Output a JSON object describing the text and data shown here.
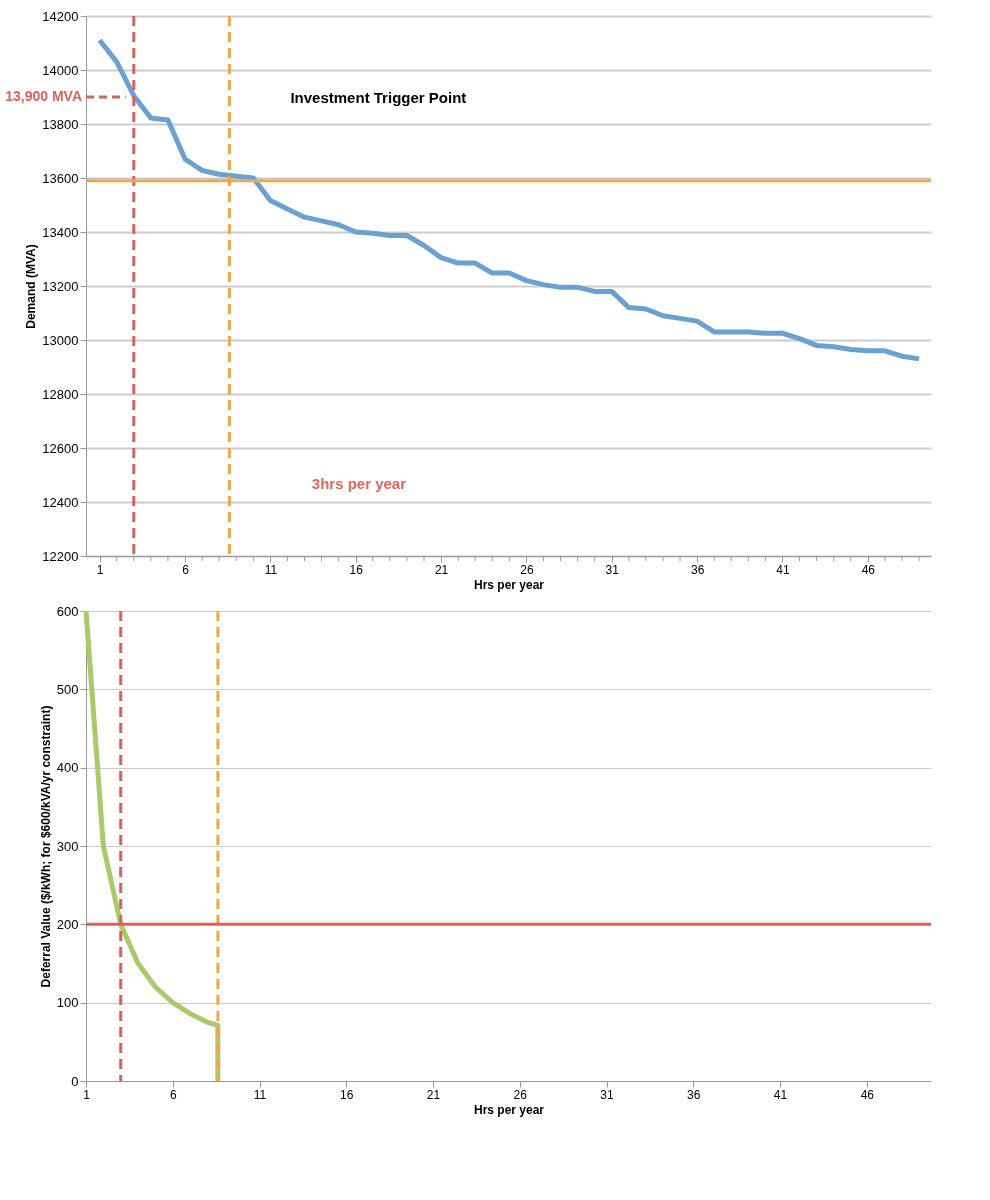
{
  "chart_data": [
    {
      "type": "line",
      "xlabel": "Hrs per year",
      "ylabel": "Demand (MVA)",
      "x": [
        1,
        2,
        3,
        4,
        5,
        6,
        7,
        8,
        9,
        10,
        11,
        12,
        13,
        14,
        15,
        16,
        17,
        18,
        19,
        20,
        21,
        22,
        23,
        24,
        25,
        26,
        27,
        28,
        29,
        30,
        31,
        32,
        33,
        34,
        35,
        36,
        37,
        38,
        39,
        40,
        41,
        42,
        43,
        44,
        45,
        46,
        47,
        48,
        49
      ],
      "series": [
        {
          "color": "#6aa1d0",
          "values": [
            14110,
            14030,
            13905,
            13822,
            13815,
            13670,
            13628,
            13614,
            13607,
            13600,
            13517,
            13485,
            13455,
            13441,
            13427,
            13400,
            13395,
            13387,
            13387,
            13350,
            13305,
            13285,
            13285,
            13248,
            13248,
            13220,
            13205,
            13195,
            13195,
            13180,
            13180,
            13120,
            13115,
            13090,
            13080,
            13070,
            13030,
            13030,
            13030,
            13025,
            13025,
            13005,
            12980,
            12975,
            12965,
            12960,
            12960,
            12940,
            12930
          ]
        }
      ],
      "xlim": [
        0.2,
        49.7
      ],
      "ylim": [
        12200,
        14200
      ],
      "xticks": [
        1,
        {
          "value": 2,
          "label": null
        },
        {
          "value": 3,
          "label": null
        },
        {
          "value": 4,
          "label": null
        },
        {
          "value": 5,
          "label": null
        },
        6,
        {
          "value": 7,
          "label": null
        },
        {
          "value": 8,
          "label": null
        },
        {
          "value": 9,
          "label": null
        },
        {
          "value": 10,
          "label": null
        },
        11,
        {
          "value": 12,
          "label": null
        },
        {
          "value": 13,
          "label": null
        },
        {
          "value": 14,
          "label": null
        },
        {
          "value": 15,
          "label": null
        },
        16,
        {
          "value": 17,
          "label": null
        },
        {
          "value": 18,
          "label": null
        },
        {
          "value": 19,
          "label": null
        },
        {
          "value": 20,
          "label": null
        },
        21,
        {
          "value": 22,
          "label": null
        },
        {
          "value": 23,
          "label": null
        },
        {
          "value": 24,
          "label": null
        },
        {
          "value": 25,
          "label": null
        },
        26,
        {
          "value": 27,
          "label": null
        },
        {
          "value": 28,
          "label": null
        },
        {
          "value": 29,
          "label": null
        },
        {
          "value": 30,
          "label": null
        },
        31,
        {
          "value": 32,
          "label": null
        },
        {
          "value": 33,
          "label": null
        },
        {
          "value": 34,
          "label": null
        },
        {
          "value": 35,
          "label": null
        },
        36,
        {
          "value": 37,
          "label": null
        },
        {
          "value": 38,
          "label": null
        },
        {
          "value": 39,
          "label": null
        },
        {
          "value": 40,
          "label": null
        },
        41,
        {
          "value": 42,
          "label": null
        },
        {
          "value": 43,
          "label": null
        },
        {
          "value": 44,
          "label": null
        },
        {
          "value": 45,
          "label": null
        },
        46,
        {
          "value": 47,
          "label": null
        },
        {
          "value": 48,
          "label": null
        },
        {
          "value": 49,
          "label": null
        }
      ],
      "yticks": [
        12200,
        12400,
        12600,
        12800,
        13000,
        13200,
        13400,
        13600,
        13800,
        14000,
        14200
      ],
      "grid": "y",
      "ref_lines": [
        {
          "axis": "x",
          "value": 3,
          "color": "#d9625a",
          "line_style": "dashed"
        },
        {
          "axis": "x",
          "value": 8.6,
          "color": "#f5a54a",
          "line_style": "dashed"
        },
        {
          "axis": "y",
          "value": 13590,
          "color": "#f5a54a",
          "line_style": "solid"
        }
      ],
      "annotations": [
        {
          "text": "13,900 MVA",
          "x": 3,
          "y": 13900
        },
        "Investment Trigger Point",
        "3hrs per year"
      ]
    },
    {
      "type": "line",
      "xlabel": "Hrs per year",
      "ylabel": "Deferral Value ($/kWh; for $600/kVA/yr constraint)",
      "series": [
        {
          "color": "#a9c96a",
          "x": [
            1,
            2,
            3,
            4,
            5,
            6,
            7,
            8,
            8.6,
            8.6
          ],
          "values": [
            600,
            300,
            200,
            150,
            120,
            100,
            86,
            75,
            71,
            0
          ]
        }
      ],
      "xlim": [
        1,
        49.7
      ],
      "ylim": [
        0,
        600
      ],
      "xticks": [
        1,
        6,
        11,
        16,
        21,
        26,
        31,
        36,
        41,
        46
      ],
      "yticks": [
        0,
        100,
        200,
        300,
        400,
        500,
        600
      ],
      "grid": "y",
      "ref_lines": [
        {
          "axis": "x",
          "value": 3,
          "color": "#d9625a",
          "line_style": "dashed"
        },
        {
          "axis": "x",
          "value": 8.6,
          "color": "#f5a54a",
          "line_style": "dashed"
        },
        {
          "axis": "y",
          "value": 200,
          "color": "#d9625a",
          "line_style": "solid"
        }
      ]
    }
  ]
}
